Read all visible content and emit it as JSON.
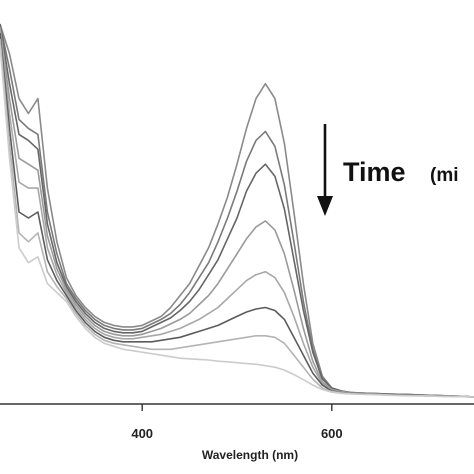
{
  "chart_data": {
    "type": "line",
    "title": "",
    "xlabel": "Wavelength (nm)",
    "ylabel": "",
    "xlim": [
      250,
      750
    ],
    "xticks": [
      400,
      600
    ],
    "annotation": {
      "big": "Time",
      "small": "(mi"
    },
    "grid": false,
    "legend": "none",
    "series": [
      {
        "color": "#8a8a8a",
        "x": [
          250,
          260,
          270,
          280,
          290,
          300,
          310,
          320,
          330,
          340,
          350,
          360,
          370,
          380,
          390,
          400,
          410,
          420,
          430,
          440,
          450,
          460,
          470,
          480,
          490,
          500,
          510,
          520,
          530,
          540,
          550,
          560,
          570,
          580,
          590,
          600,
          610,
          620,
          640,
          660,
          680,
          700,
          720,
          740,
          750
        ],
        "y": [
          1.25,
          1.15,
          1.0,
          0.95,
          1.0,
          0.7,
          0.52,
          0.4,
          0.34,
          0.3,
          0.27,
          0.25,
          0.24,
          0.235,
          0.235,
          0.24,
          0.255,
          0.27,
          0.3,
          0.34,
          0.38,
          0.44,
          0.5,
          0.58,
          0.67,
          0.78,
          0.9,
          1.0,
          1.05,
          1.0,
          0.85,
          0.62,
          0.38,
          0.18,
          0.07,
          0.03,
          0.02,
          0.015,
          0.012,
          0.01,
          0.008,
          0.006,
          0.004,
          0.002,
          0.0
        ]
      },
      {
        "color": "#7a7a7a",
        "x": [
          250,
          260,
          270,
          280,
          290,
          300,
          310,
          320,
          330,
          340,
          350,
          360,
          370,
          380,
          390,
          400,
          410,
          420,
          430,
          440,
          450,
          460,
          470,
          480,
          490,
          500,
          510,
          520,
          530,
          540,
          550,
          560,
          570,
          580,
          590,
          600,
          610,
          620,
          640,
          660,
          680,
          700,
          720,
          740,
          750
        ],
        "y": [
          1.25,
          1.1,
          0.93,
          0.9,
          0.88,
          0.62,
          0.48,
          0.38,
          0.33,
          0.29,
          0.26,
          0.24,
          0.23,
          0.225,
          0.225,
          0.23,
          0.245,
          0.26,
          0.28,
          0.31,
          0.35,
          0.4,
          0.45,
          0.52,
          0.6,
          0.69,
          0.79,
          0.86,
          0.89,
          0.84,
          0.71,
          0.52,
          0.32,
          0.16,
          0.065,
          0.03,
          0.02,
          0.015,
          0.012,
          0.01,
          0.008,
          0.006,
          0.004,
          0.002,
          0.0
        ]
      },
      {
        "color": "#666666",
        "x": [
          250,
          260,
          270,
          280,
          290,
          300,
          310,
          320,
          330,
          340,
          350,
          360,
          370,
          380,
          390,
          400,
          410,
          420,
          430,
          440,
          450,
          460,
          470,
          480,
          490,
          500,
          510,
          520,
          530,
          540,
          550,
          560,
          570,
          580,
          590,
          600,
          610,
          620,
          640,
          660,
          680,
          700,
          720,
          740,
          750
        ],
        "y": [
          1.25,
          1.05,
          0.88,
          0.86,
          0.83,
          0.58,
          0.45,
          0.37,
          0.32,
          0.28,
          0.25,
          0.23,
          0.22,
          0.215,
          0.215,
          0.22,
          0.235,
          0.25,
          0.265,
          0.29,
          0.32,
          0.36,
          0.41,
          0.46,
          0.53,
          0.6,
          0.69,
          0.75,
          0.78,
          0.74,
          0.63,
          0.46,
          0.29,
          0.15,
          0.06,
          0.03,
          0.02,
          0.015,
          0.012,
          0.01,
          0.008,
          0.006,
          0.004,
          0.002,
          0.0
        ]
      },
      {
        "color": "#9a9a9a",
        "x": [
          250,
          260,
          270,
          280,
          290,
          300,
          310,
          320,
          330,
          340,
          350,
          360,
          370,
          380,
          390,
          400,
          410,
          420,
          430,
          440,
          450,
          460,
          470,
          480,
          490,
          500,
          510,
          520,
          530,
          540,
          550,
          560,
          570,
          580,
          590,
          600,
          610,
          620,
          640,
          660,
          680,
          700,
          720,
          740,
          750
        ],
        "y": [
          1.24,
          1.0,
          0.8,
          0.78,
          0.76,
          0.54,
          0.43,
          0.36,
          0.31,
          0.27,
          0.24,
          0.22,
          0.21,
          0.205,
          0.205,
          0.21,
          0.22,
          0.23,
          0.245,
          0.26,
          0.28,
          0.31,
          0.34,
          0.38,
          0.43,
          0.48,
          0.53,
          0.57,
          0.59,
          0.56,
          0.48,
          0.36,
          0.23,
          0.12,
          0.05,
          0.025,
          0.018,
          0.014,
          0.011,
          0.009,
          0.007,
          0.005,
          0.003,
          0.002,
          0.0
        ]
      },
      {
        "color": "#a8a8a8",
        "x": [
          250,
          260,
          270,
          280,
          290,
          300,
          310,
          320,
          330,
          340,
          350,
          360,
          370,
          380,
          390,
          400,
          410,
          420,
          430,
          440,
          450,
          460,
          470,
          480,
          490,
          500,
          510,
          520,
          530,
          540,
          550,
          560,
          570,
          580,
          590,
          600,
          610,
          620,
          640,
          660,
          680,
          700,
          720,
          740,
          750
        ],
        "y": [
          1.23,
          0.95,
          0.72,
          0.7,
          0.7,
          0.5,
          0.41,
          0.35,
          0.3,
          0.26,
          0.23,
          0.21,
          0.2,
          0.195,
          0.195,
          0.2,
          0.205,
          0.21,
          0.22,
          0.23,
          0.245,
          0.26,
          0.28,
          0.3,
          0.33,
          0.36,
          0.39,
          0.41,
          0.42,
          0.4,
          0.35,
          0.27,
          0.18,
          0.1,
          0.045,
          0.022,
          0.016,
          0.013,
          0.01,
          0.008,
          0.006,
          0.005,
          0.003,
          0.001,
          0.0
        ]
      },
      {
        "color": "#5c5c5c",
        "x": [
          250,
          260,
          270,
          280,
          290,
          300,
          310,
          320,
          330,
          340,
          350,
          360,
          370,
          380,
          390,
          400,
          410,
          420,
          430,
          440,
          450,
          460,
          470,
          480,
          490,
          500,
          510,
          520,
          530,
          540,
          550,
          560,
          570,
          580,
          590,
          600,
          610,
          620,
          640,
          660,
          680,
          700,
          720,
          740,
          750
        ],
        "y": [
          1.22,
          0.9,
          0.62,
          0.6,
          0.62,
          0.46,
          0.39,
          0.34,
          0.29,
          0.25,
          0.22,
          0.2,
          0.19,
          0.185,
          0.185,
          0.185,
          0.185,
          0.19,
          0.195,
          0.2,
          0.21,
          0.22,
          0.23,
          0.24,
          0.255,
          0.27,
          0.285,
          0.295,
          0.3,
          0.29,
          0.26,
          0.2,
          0.14,
          0.08,
          0.04,
          0.02,
          0.015,
          0.012,
          0.01,
          0.008,
          0.006,
          0.004,
          0.003,
          0.001,
          0.0
        ]
      },
      {
        "color": "#b4b4b4",
        "x": [
          250,
          260,
          270,
          280,
          290,
          300,
          310,
          320,
          330,
          340,
          350,
          360,
          370,
          380,
          390,
          400,
          410,
          420,
          430,
          440,
          450,
          460,
          470,
          480,
          490,
          500,
          510,
          520,
          530,
          540,
          550,
          560,
          570,
          580,
          590,
          600,
          610,
          620,
          640,
          660,
          680,
          700,
          720,
          740,
          750
        ],
        "y": [
          1.2,
          0.85,
          0.55,
          0.52,
          0.55,
          0.42,
          0.37,
          0.33,
          0.28,
          0.24,
          0.21,
          0.19,
          0.18,
          0.175,
          0.17,
          0.165,
          0.16,
          0.16,
          0.16,
          0.165,
          0.17,
          0.175,
          0.18,
          0.185,
          0.19,
          0.195,
          0.2,
          0.205,
          0.205,
          0.2,
          0.18,
          0.14,
          0.1,
          0.06,
          0.03,
          0.018,
          0.014,
          0.011,
          0.009,
          0.007,
          0.005,
          0.004,
          0.002,
          0.001,
          0.0
        ]
      },
      {
        "color": "#cccccc",
        "x": [
          250,
          260,
          270,
          280,
          290,
          300,
          310,
          320,
          330,
          340,
          350,
          360,
          370,
          380,
          390,
          400,
          410,
          420,
          430,
          440,
          450,
          460,
          470,
          480,
          490,
          500,
          510,
          520,
          530,
          540,
          550,
          560,
          570,
          580,
          590,
          600,
          610,
          620,
          640,
          660,
          680,
          700,
          720,
          740,
          750
        ],
        "y": [
          1.18,
          0.8,
          0.5,
          0.45,
          0.47,
          0.38,
          0.35,
          0.32,
          0.27,
          0.23,
          0.2,
          0.18,
          0.17,
          0.16,
          0.155,
          0.15,
          0.145,
          0.14,
          0.135,
          0.13,
          0.128,
          0.126,
          0.124,
          0.12,
          0.118,
          0.115,
          0.112,
          0.11,
          0.105,
          0.1,
          0.09,
          0.075,
          0.058,
          0.04,
          0.025,
          0.016,
          0.012,
          0.01,
          0.008,
          0.006,
          0.004,
          0.003,
          0.002,
          0.001,
          0.0
        ]
      }
    ]
  }
}
